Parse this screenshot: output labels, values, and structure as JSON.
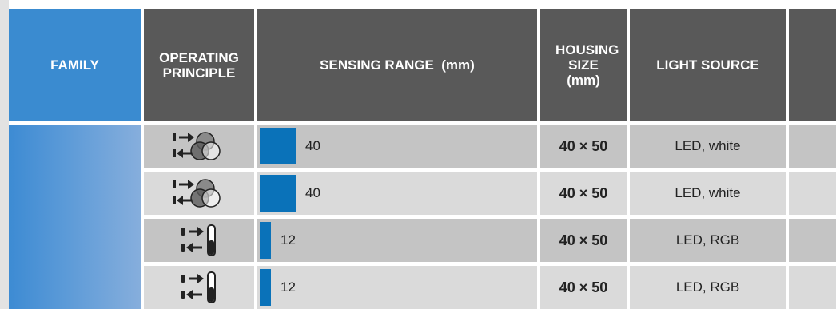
{
  "headers": {
    "family": "FAMILY",
    "operating_principle": "OPERATING PRINCIPLE",
    "sensing_range": "SENSING RANGE  (mm)",
    "housing_size": "HOUSING SIZE (mm)",
    "light_source": "LIGHT SOURCE"
  },
  "rows": [
    {
      "principle_icon": "color-sensor-icon",
      "range": "40",
      "range_fraction": 0.9,
      "housing": "40 × 50",
      "light": "LED, white"
    },
    {
      "principle_icon": "color-sensor-icon",
      "range": "40",
      "range_fraction": 0.9,
      "housing": "40 × 50",
      "light": "LED, white"
    },
    {
      "principle_icon": "contrast-sensor-icon",
      "range": "12",
      "range_fraction": 0.27,
      "housing": "40 × 50",
      "light": "LED, RGB"
    },
    {
      "principle_icon": "contrast-sensor-icon",
      "range": "12",
      "range_fraction": 0.27,
      "housing": "40 × 50",
      "light": "LED, RGB"
    }
  ],
  "colors": {
    "header_dark": "#595959",
    "family_blue": "#3a8bd0",
    "range_bar": "#0a72b9",
    "row_dark": "#c4c4c4",
    "row_light": "#dadada"
  }
}
